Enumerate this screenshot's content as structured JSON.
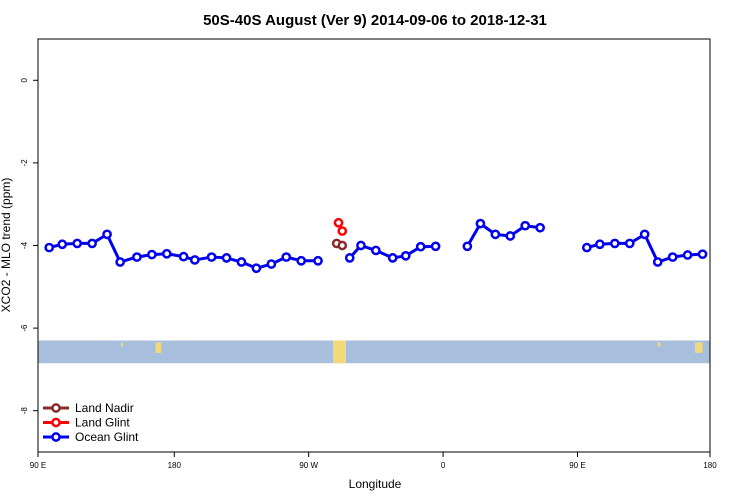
{
  "chart_data": {
    "type": "line",
    "title": "50S-40S August (Ver 9)   2014-09-06 to 2018-12-31",
    "xlabel": "Longitude",
    "ylabel": "XCO2 - MLO trend (ppm)",
    "xlim": [
      0,
      360
    ],
    "ylim": [
      -9,
      1
    ],
    "x_ticks": [
      {
        "value": 0,
        "label": "90 E"
      },
      {
        "value": 73,
        "label": "180"
      },
      {
        "value": 145,
        "label": "90 W"
      },
      {
        "value": 217,
        "label": "0"
      },
      {
        "value": 289,
        "label": "90 E"
      },
      {
        "value": 360,
        "label": "180"
      }
    ],
    "y_ticks": [
      {
        "value": 0,
        "label": "0"
      },
      {
        "value": -2,
        "label": "-2"
      },
      {
        "value": -4,
        "label": "-4"
      },
      {
        "value": -6,
        "label": "-6"
      },
      {
        "value": -8,
        "label": "-8"
      }
    ],
    "grid": false,
    "legend_position": "bottom-left",
    "land_band": {
      "ymin": -6.85,
      "ymax": -6.3,
      "ocean_color": "#a7bfdc",
      "land_color": "#f3d97a"
    },
    "land_patches": [
      {
        "x": [
          44.5,
          45.5
        ],
        "y": [
          -6.45,
          -6.35
        ]
      },
      {
        "x": [
          63,
          66
        ],
        "y": [
          -6.6,
          -6.35
        ]
      },
      {
        "x": [
          158,
          165
        ],
        "y": [
          -6.85,
          -6.3
        ]
      },
      {
        "x": [
          332,
          333.5
        ],
        "y": [
          -6.45,
          -6.35
        ]
      },
      {
        "x": [
          352,
          356
        ],
        "y": [
          -6.6,
          -6.35
        ]
      }
    ],
    "series": [
      {
        "name": "Land Nadir",
        "color": "#8b2a2a",
        "segments": [
          [
            [
              160,
              -3.95
            ],
            [
              163,
              -4.0
            ]
          ]
        ]
      },
      {
        "name": "Land Glint",
        "color": "#ff0000",
        "segments": [
          [
            [
              161,
              -3.45
            ],
            [
              163,
              -3.65
            ]
          ]
        ]
      },
      {
        "name": "Ocean Glint",
        "color": "#0000ee",
        "segments": [
          [
            [
              6,
              -4.05
            ],
            [
              13,
              -3.97
            ],
            [
              21,
              -3.95
            ],
            [
              29,
              -3.95
            ],
            [
              37,
              -3.73
            ],
            [
              44,
              -4.4
            ],
            [
              53,
              -4.28
            ],
            [
              61,
              -4.22
            ],
            [
              69,
              -4.2
            ],
            [
              78,
              -4.27
            ],
            [
              84,
              -4.35
            ],
            [
              93,
              -4.28
            ],
            [
              101,
              -4.3
            ],
            [
              109,
              -4.4
            ],
            [
              117,
              -4.55
            ],
            [
              125,
              -4.45
            ],
            [
              133,
              -4.28
            ],
            [
              141,
              -4.37
            ],
            [
              150,
              -4.37
            ]
          ],
          [
            [
              167,
              -4.3
            ],
            [
              173,
              -4.0
            ],
            [
              181,
              -4.12
            ],
            [
              190,
              -4.3
            ],
            [
              197,
              -4.25
            ],
            [
              205,
              -4.03
            ],
            [
              213,
              -4.02
            ]
          ],
          [
            [
              230,
              -4.02
            ],
            [
              237,
              -3.47
            ],
            [
              245,
              -3.73
            ],
            [
              253,
              -3.77
            ],
            [
              261,
              -3.52
            ],
            [
              269,
              -3.57
            ]
          ],
          [
            [
              294,
              -4.05
            ],
            [
              301,
              -3.97
            ],
            [
              309,
              -3.95
            ],
            [
              317,
              -3.95
            ],
            [
              325,
              -3.73
            ],
            [
              332,
              -4.4
            ],
            [
              340,
              -4.28
            ],
            [
              348,
              -4.23
            ],
            [
              356,
              -4.21
            ]
          ]
        ]
      }
    ]
  }
}
